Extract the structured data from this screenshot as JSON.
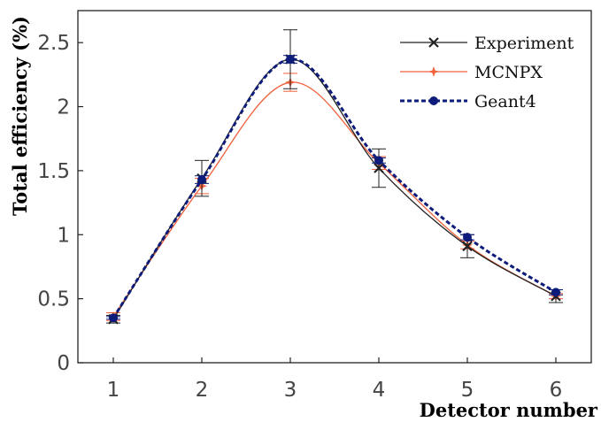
{
  "chart_data": {
    "type": "line",
    "title": "",
    "xlabel": "Detector number",
    "ylabel": "Total efficiency (%)",
    "xlim": [
      0.6,
      6.4
    ],
    "ylim": [
      0,
      2.75
    ],
    "x_ticks": [
      "1",
      "2",
      "3",
      "4",
      "5",
      "6"
    ],
    "y_ticks": [
      "0",
      "0.5",
      "1",
      "1.5",
      "2",
      "2.5"
    ],
    "x": [
      1,
      2,
      3,
      4,
      5,
      6
    ],
    "legend_position": "top-right",
    "grid": false,
    "series": [
      {
        "name": "Experiment",
        "color": "#222222",
        "marker": "x",
        "line_style": "solid",
        "values": [
          0.34,
          1.44,
          2.37,
          1.52,
          0.91,
          0.52
        ],
        "errors": [
          0.03,
          0.14,
          0.23,
          0.15,
          0.09,
          0.05
        ]
      },
      {
        "name": "MCNPX",
        "color": "#f0603a",
        "marker": "star",
        "line_style": "solid",
        "values": [
          0.36,
          1.38,
          2.19,
          1.56,
          0.92,
          0.52
        ],
        "errors": [
          0.03,
          0.06,
          0.07,
          0.05,
          0.03,
          0.02
        ]
      },
      {
        "name": "Geant4",
        "color": "#0d1b7a",
        "marker": "circle",
        "line_style": "dashed",
        "values": [
          0.35,
          1.43,
          2.37,
          1.58,
          0.98,
          0.55
        ],
        "errors": [
          0.01,
          0.03,
          0.03,
          0.02,
          0.02,
          0.02
        ]
      }
    ]
  }
}
